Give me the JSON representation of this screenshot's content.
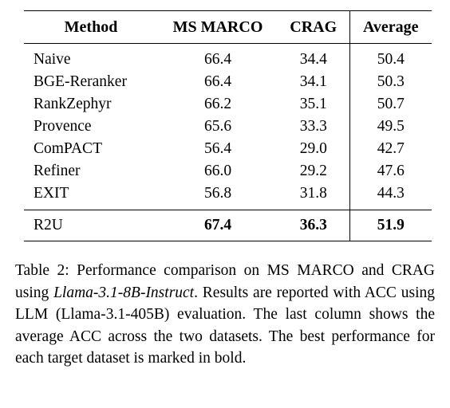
{
  "table": {
    "headers": [
      "Method",
      "MS MARCO",
      "CRAG",
      "Average"
    ],
    "rows": [
      {
        "method": "Naive",
        "ms_marco": "66.4",
        "crag": "34.4",
        "average": "50.4"
      },
      {
        "method": "BGE-Reranker",
        "ms_marco": "66.4",
        "crag": "34.1",
        "average": "50.3"
      },
      {
        "method": "RankZephyr",
        "ms_marco": "66.2",
        "crag": "35.1",
        "average": "50.7"
      },
      {
        "method": "Provence",
        "ms_marco": "65.6",
        "crag": "33.3",
        "average": "49.5"
      },
      {
        "method": "ComPACT",
        "ms_marco": "56.4",
        "crag": "29.0",
        "average": "42.7"
      },
      {
        "method": "Refiner",
        "ms_marco": "66.0",
        "crag": "29.2",
        "average": "47.6"
      },
      {
        "method": "EXIT",
        "ms_marco": "56.8",
        "crag": "31.8",
        "average": "44.3"
      }
    ],
    "best": {
      "method": "R2U",
      "ms_marco": "67.4",
      "crag": "36.3",
      "average": "51.9"
    }
  },
  "caption": {
    "prefix": "Table 2: Performance comparison on MS MARCO and CRAG using ",
    "model": "Llama-3.1-8B-Instruct",
    "suffix": ". Results are reported with ACC using LLM (Llama-3.1-405B) evaluation. The last column shows the average ACC across the two datasets. The best performance for each target dataset is marked in bold."
  }
}
